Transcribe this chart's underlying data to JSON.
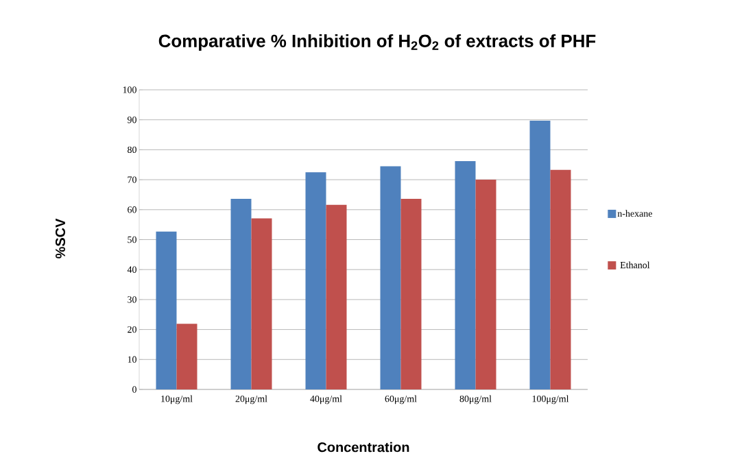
{
  "chart_data": {
    "type": "bar",
    "title": "Comparative  % Inhibition of H$_{2}$O$_{2}$ of extracts of PHF",
    "xlabel": "Concentration",
    "ylabel": "%SCV",
    "categories": [
      "10μg/ml",
      "20μg/ml",
      "40μg/ml",
      "60μg/ml",
      "80μg/ml",
      "100μg/ml"
    ],
    "series": [
      {
        "name": "n-hexane",
        "color": "#4f81bd",
        "values": [
          52.7,
          63.6,
          72.5,
          74.5,
          76.2,
          89.7
        ]
      },
      {
        "name": "Ethanol",
        "color": "#c0504d",
        "values": [
          21.9,
          57.1,
          61.6,
          63.6,
          70.0,
          73.3
        ]
      }
    ],
    "ylim": [
      0,
      100
    ],
    "yticks": [
      0,
      10,
      20,
      30,
      40,
      50,
      60,
      70,
      80,
      90,
      100
    ],
    "grid": "y",
    "legend": "right"
  }
}
